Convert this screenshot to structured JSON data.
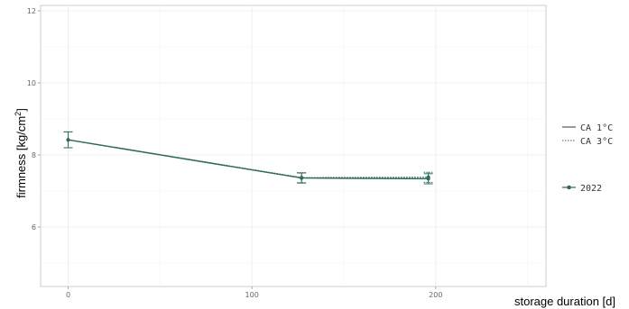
{
  "chart_data": {
    "type": "line",
    "xlabel": "storage duration [d]",
    "ylabel_main": "firmness [kg/cm",
    "ylabel_sup": "2",
    "ylabel_end": "]",
    "xlim": [
      -15,
      260
    ],
    "ylim": [
      4.35,
      12.15
    ],
    "x_ticks": [
      0,
      100,
      200
    ],
    "y_ticks": [
      6,
      8,
      10,
      12
    ],
    "x_tick_labels": [
      "0",
      "100",
      "200"
    ],
    "y_tick_labels": [
      "6",
      "8",
      "10",
      "12"
    ],
    "grid": true,
    "legend_position": "right",
    "series": [
      {
        "name": "CA 1°C",
        "linestyle": "solid",
        "color": "#2e6b5c",
        "x": [
          0,
          127,
          196
        ],
        "y": [
          8.42,
          7.36,
          7.34
        ],
        "err": [
          0.22,
          0.14,
          0.14
        ]
      },
      {
        "name": "CA 3°C",
        "linestyle": "dotted",
        "color": "#2e6b5c",
        "x": [
          0,
          127,
          196
        ],
        "y": [
          8.42,
          7.37,
          7.38
        ],
        "err": [
          0.22,
          0.14,
          0.14
        ]
      }
    ],
    "point_legend": "2022"
  }
}
